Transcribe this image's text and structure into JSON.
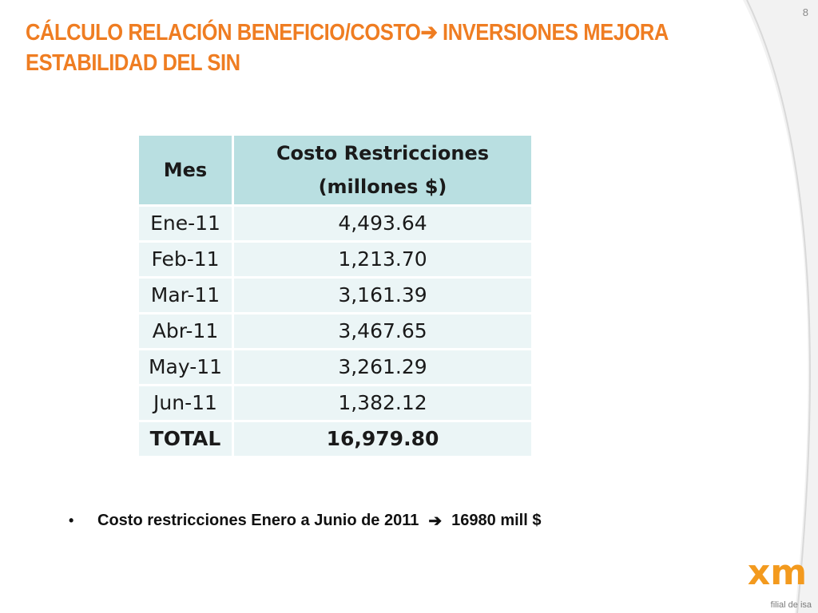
{
  "slide": {
    "number": "8",
    "title_line1_before_arrow": "CÁLCULO RELACIÓN BENEFICIO/COSTO",
    "title_line1_after_arrow": " INVERSIONES MEJORA",
    "title_line2": "ESTABILIDAD DEL SIN",
    "arrow_glyph": "➔"
  },
  "table": {
    "headers": [
      "Mes",
      "Costo Restricciones (millones $)"
    ],
    "rows": [
      {
        "mes": "Ene-11",
        "costo": "4,493.64"
      },
      {
        "mes": "Feb-11",
        "costo": "1,213.70"
      },
      {
        "mes": "Mar-11",
        "costo": "3,161.39"
      },
      {
        "mes": "Abr-11",
        "costo": "3,467.65"
      },
      {
        "mes": "May-11",
        "costo": "3,261.29"
      },
      {
        "mes": "Jun-11",
        "costo": "1,382.12"
      }
    ],
    "total": {
      "label": "TOTAL",
      "value": "16,979.80"
    }
  },
  "bullet": {
    "dot": "•",
    "text_before": "Costo restricciones Enero a Junio de 2011",
    "arrow": "➔",
    "text_after": "16980 mill $"
  },
  "logo": {
    "mark": "xm",
    "caption": "filial de isa"
  },
  "colors": {
    "title": "#ef7d22",
    "header_bg": "#b9dfe1",
    "row_bg": "#ebf5f6",
    "logo_orange": "#f39a1e"
  }
}
